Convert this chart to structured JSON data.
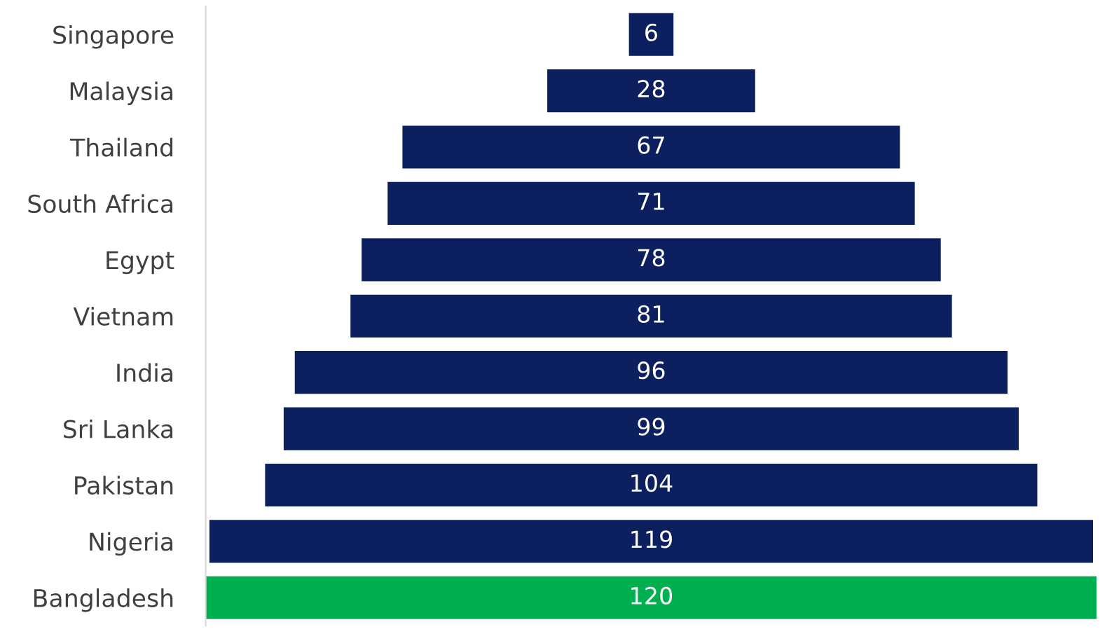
{
  "chart_data": {
    "type": "other",
    "categories": [
      "Singapore",
      "Malaysia",
      "Thailand",
      "South Africa",
      "Egypt",
      "Vietnam",
      "India",
      "Sri Lanka",
      "Pakistan",
      "Nigeria",
      "Bangladesh"
    ],
    "values": [
      6,
      28,
      67,
      71,
      78,
      81,
      96,
      99,
      104,
      119,
      120
    ],
    "colors": [
      "#0c1f5e",
      "#0c1f5e",
      "#0c1f5e",
      "#0c1f5e",
      "#0c1f5e",
      "#0c1f5e",
      "#0c1f5e",
      "#0c1f5e",
      "#0c1f5e",
      "#0c1f5e",
      "#00b050"
    ],
    "data_labels": true
  }
}
